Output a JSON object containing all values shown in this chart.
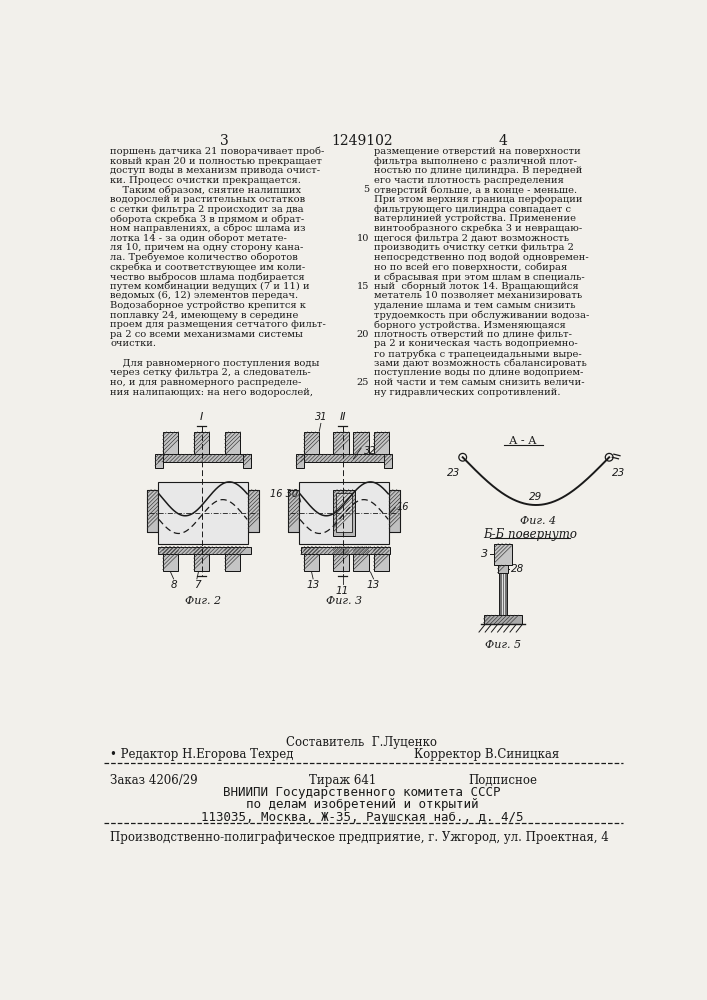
{
  "page_number_left": "3",
  "patent_number": "1249102",
  "page_number_right": "4",
  "background_color": "#f2f0eb",
  "text_color": "#1a1a1a",
  "left_column_text": [
    "поршень датчика 21 поворачивает проб-",
    "ковый кран 20 и полностью прекращает",
    "доступ воды в механизм привода очист-",
    "ки. Процесс очистки прекращается.",
    "    Таким образом, снятие налипших",
    "водорослей и растительных остатков",
    "с сетки фильтра 2 происходит за два",
    "оборота скребка 3 в прямом и обрат-",
    "ном направлениях, а сброс шлама из",
    "лотка 14 - за один оборот метате-",
    "ля 10, причем на одну сторону кана-",
    "ла. Требуемое количество оборотов",
    "скребка и соответствующее им коли-",
    "чество выбросов шлама подбирается",
    "путем комбинации ведущих (7 и 11) и",
    "ведомых (6, 12) элементов передач.",
    "Водозаборное устройство крепится к",
    "поплавку 24, имеющему в середине",
    "проем для размещения сетчатого фильт-",
    "ра 2 со всеми механизмами системы",
    "очистки.",
    "",
    "    Для равномерного поступления воды",
    "через сетку фильтра 2, а следователь-",
    "но, и для равномерного распределе-",
    "ния налипающих: на него водорослей,"
  ],
  "right_col_linenos_idx": [
    4,
    9,
    14,
    19,
    24
  ],
  "right_col_linenos_val": [
    "5",
    "10",
    "15",
    "20",
    "25"
  ],
  "right_column_text": [
    "размещение отверстий на поверхности",
    "фильтра выполнено с различной плот-",
    "ностью по длине цилиндра. В передней",
    "его части плотность распределения",
    "отверстий больше, а в конце - меньше.",
    "При этом верхняя граница перфорации",
    "фильтрующего цилиндра совпадает с",
    "ватерлинией устройства. Применение",
    "винтообразного скребка 3 и невращаю-",
    "щегося фильтра 2 дают возможность",
    "производить очистку сетки фильтра 2",
    "непосредственно под водой одновремен-",
    "но по всей его поверхности, собирая",
    "и сбрасывая при этом шлам в специаль-",
    "ный  сборный лоток 14. Вращающийся",
    "метатель 10 позволяет механизировать",
    "удаление шлама и тем самым снизить",
    "трудоемкость при обслуживании водоза-",
    "борного устройства. Изменяющаяся",
    "плотность отверстий по длине фильт-",
    "ра 2 и коническая часть водоприемно-",
    "го патрубка с трапецеидальными выре-",
    "зами дают возможность сбалансировать",
    "поступление воды по длине водоприем-",
    "ной части и тем самым снизить величи-",
    "ну гидравлических сопротивлений."
  ],
  "footer_author": "Составитель  Г.Луценко",
  "footer_editor": "• Редактор Н.Егорова Техред",
  "footer_corrector": "Корректор В.Синицкая",
  "footer_order": "Заказ 4206/29",
  "footer_tirazh": "Тираж 641",
  "footer_podpisnoe": "Подписное",
  "footer_vniipи": "ВНИИПИ Государственного комитета СССР",
  "footer_po_delam": "по делам изобретений и открытий",
  "footer_address": "113035, Москва, Ж-35, Раушская наб., д. 4/5",
  "footer_production": "Производственно-полиграфическое предприятие, г. Ужгород, ул. Проектная, 4"
}
